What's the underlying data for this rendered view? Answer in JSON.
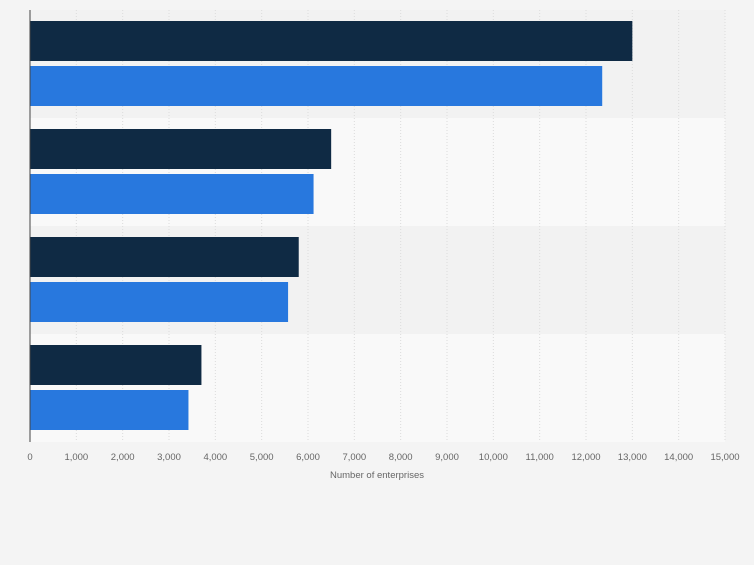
{
  "chart_data": {
    "type": "bar",
    "orientation": "horizontal",
    "categories": [
      "",
      "",
      "",
      ""
    ],
    "series": [
      {
        "color": "#0f2a44",
        "values": [
          13000,
          6500,
          5800,
          3700
        ]
      },
      {
        "color": "#2878de",
        "values": [
          12350,
          6120,
          5570,
          3420
        ]
      }
    ],
    "xlabel": "Number of enterprises",
    "ylabel": "",
    "xlim": [
      0,
      15000
    ],
    "xticks": [
      0,
      1000,
      2000,
      3000,
      4000,
      5000,
      6000,
      7000,
      8000,
      9000,
      10000,
      11000,
      12000,
      13000,
      14000,
      15000
    ],
    "tick_labels": [
      "0",
      "1,000",
      "2,000",
      "3,000",
      "4,000",
      "5,000",
      "6,000",
      "7,000",
      "8,000",
      "9,000",
      "10,000",
      "11,000",
      "12,000",
      "13,000",
      "14,000",
      "15,000"
    ],
    "grid": true,
    "legend": "none",
    "colors": {
      "background": "#f4f4f4",
      "band_dark": "#f2f2f2",
      "band_light": "#f9f9f9",
      "grid": "#dcdcdc",
      "axis": "#444444",
      "tick_text": "#666666"
    }
  }
}
